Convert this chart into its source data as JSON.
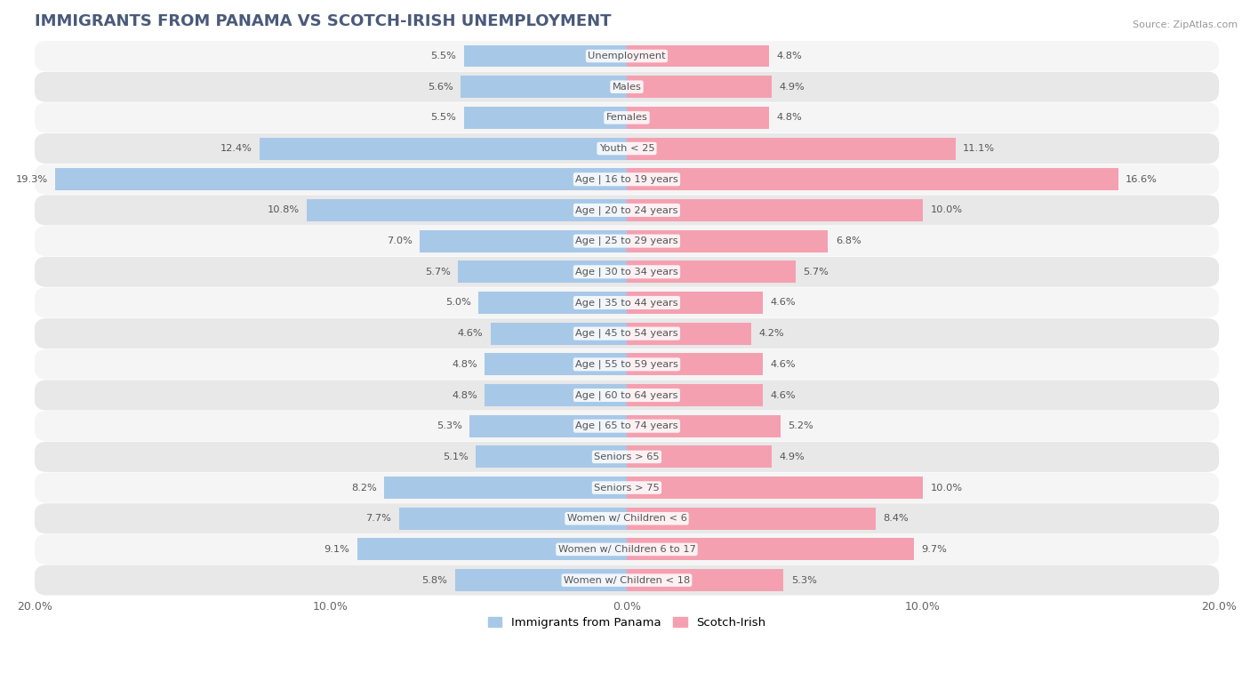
{
  "title": "IMMIGRANTS FROM PANAMA VS SCOTCH-IRISH UNEMPLOYMENT",
  "source": "Source: ZipAtlas.com",
  "categories": [
    "Unemployment",
    "Males",
    "Females",
    "Youth < 25",
    "Age | 16 to 19 years",
    "Age | 20 to 24 years",
    "Age | 25 to 29 years",
    "Age | 30 to 34 years",
    "Age | 35 to 44 years",
    "Age | 45 to 54 years",
    "Age | 55 to 59 years",
    "Age | 60 to 64 years",
    "Age | 65 to 74 years",
    "Seniors > 65",
    "Seniors > 75",
    "Women w/ Children < 6",
    "Women w/ Children 6 to 17",
    "Women w/ Children < 18"
  ],
  "panama_values": [
    5.5,
    5.6,
    5.5,
    12.4,
    19.3,
    10.8,
    7.0,
    5.7,
    5.0,
    4.6,
    4.8,
    4.8,
    5.3,
    5.1,
    8.2,
    7.7,
    9.1,
    5.8
  ],
  "scotch_irish_values": [
    4.8,
    4.9,
    4.8,
    11.1,
    16.6,
    10.0,
    6.8,
    5.7,
    4.6,
    4.2,
    4.6,
    4.6,
    5.2,
    4.9,
    10.0,
    8.4,
    9.7,
    5.3
  ],
  "panama_color": "#a8c8e8",
  "scotch_irish_color": "#f4a0b0",
  "row_color_even": "#f5f5f5",
  "row_color_odd": "#e8e8e8",
  "background_color": "#ffffff",
  "axis_limit": 20.0,
  "legend_panama": "Immigrants from Panama",
  "legend_scotch": "Scotch-Irish",
  "title_color": "#4a5a7a",
  "source_color": "#999999",
  "label_color": "#555555",
  "value_color": "#555555"
}
